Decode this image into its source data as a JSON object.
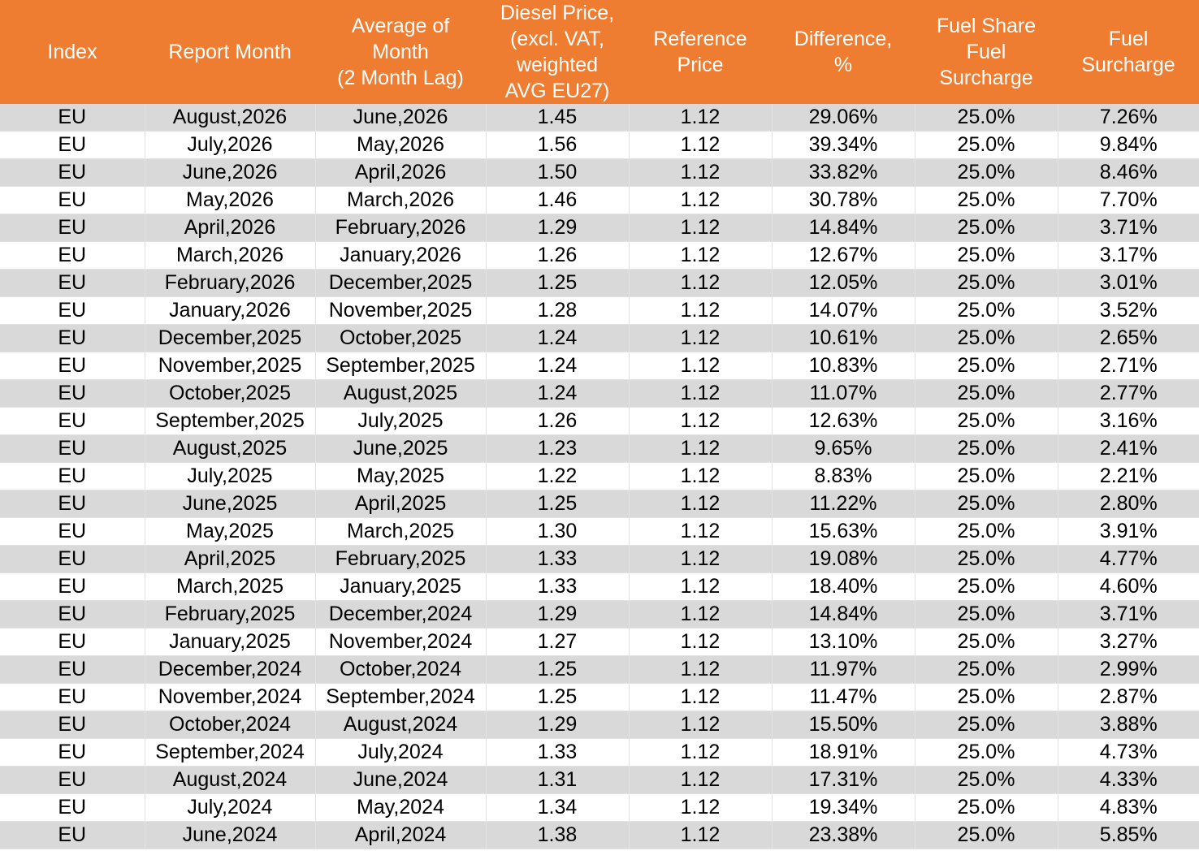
{
  "table": {
    "headers": [
      "Index",
      "Report Month",
      "Average of\nMonth\n(2 Month Lag)",
      "Diesel Price,\n(excl. VAT,\nweighted\nAVG EU27)",
      "Reference\nPrice",
      "Difference,\n%",
      "Fuel Share\nFuel\nSurcharge",
      "Fuel\nSurcharge"
    ],
    "rows": [
      [
        "EU",
        "August,2026",
        "June,2026",
        "1.45",
        "1.12",
        "29.06%",
        "25.0%",
        "7.26%"
      ],
      [
        "EU",
        "July,2026",
        "May,2026",
        "1.56",
        "1.12",
        "39.34%",
        "25.0%",
        "9.84%"
      ],
      [
        "EU",
        "June,2026",
        "April,2026",
        "1.50",
        "1.12",
        "33.82%",
        "25.0%",
        "8.46%"
      ],
      [
        "EU",
        "May,2026",
        "March,2026",
        "1.46",
        "1.12",
        "30.78%",
        "25.0%",
        "7.70%"
      ],
      [
        "EU",
        "April,2026",
        "February,2026",
        "1.29",
        "1.12",
        "14.84%",
        "25.0%",
        "3.71%"
      ],
      [
        "EU",
        "March,2026",
        "January,2026",
        "1.26",
        "1.12",
        "12.67%",
        "25.0%",
        "3.17%"
      ],
      [
        "EU",
        "February,2026",
        "December,2025",
        "1.25",
        "1.12",
        "12.05%",
        "25.0%",
        "3.01%"
      ],
      [
        "EU",
        "January,2026",
        "November,2025",
        "1.28",
        "1.12",
        "14.07%",
        "25.0%",
        "3.52%"
      ],
      [
        "EU",
        "December,2025",
        "October,2025",
        "1.24",
        "1.12",
        "10.61%",
        "25.0%",
        "2.65%"
      ],
      [
        "EU",
        "November,2025",
        "September,2025",
        "1.24",
        "1.12",
        "10.83%",
        "25.0%",
        "2.71%"
      ],
      [
        "EU",
        "October,2025",
        "August,2025",
        "1.24",
        "1.12",
        "11.07%",
        "25.0%",
        "2.77%"
      ],
      [
        "EU",
        "September,2025",
        "July,2025",
        "1.26",
        "1.12",
        "12.63%",
        "25.0%",
        "3.16%"
      ],
      [
        "EU",
        "August,2025",
        "June,2025",
        "1.23",
        "1.12",
        "9.65%",
        "25.0%",
        "2.41%"
      ],
      [
        "EU",
        "July,2025",
        "May,2025",
        "1.22",
        "1.12",
        "8.83%",
        "25.0%",
        "2.21%"
      ],
      [
        "EU",
        "June,2025",
        "April,2025",
        "1.25",
        "1.12",
        "11.22%",
        "25.0%",
        "2.80%"
      ],
      [
        "EU",
        "May,2025",
        "March,2025",
        "1.30",
        "1.12",
        "15.63%",
        "25.0%",
        "3.91%"
      ],
      [
        "EU",
        "April,2025",
        "February,2025",
        "1.33",
        "1.12",
        "19.08%",
        "25.0%",
        "4.77%"
      ],
      [
        "EU",
        "March,2025",
        "January,2025",
        "1.33",
        "1.12",
        "18.40%",
        "25.0%",
        "4.60%"
      ],
      [
        "EU",
        "February,2025",
        "December,2024",
        "1.29",
        "1.12",
        "14.84%",
        "25.0%",
        "3.71%"
      ],
      [
        "EU",
        "January,2025",
        "November,2024",
        "1.27",
        "1.12",
        "13.10%",
        "25.0%",
        "3.27%"
      ],
      [
        "EU",
        "December,2024",
        "October,2024",
        "1.25",
        "1.12",
        "11.97%",
        "25.0%",
        "2.99%"
      ],
      [
        "EU",
        "November,2024",
        "September,2024",
        "1.25",
        "1.12",
        "11.47%",
        "25.0%",
        "2.87%"
      ],
      [
        "EU",
        "October,2024",
        "August,2024",
        "1.29",
        "1.12",
        "15.50%",
        "25.0%",
        "3.88%"
      ],
      [
        "EU",
        "September,2024",
        "July,2024",
        "1.33",
        "1.12",
        "18.91%",
        "25.0%",
        "4.73%"
      ],
      [
        "EU",
        "August,2024",
        "June,2024",
        "1.31",
        "1.12",
        "17.31%",
        "25.0%",
        "4.33%"
      ],
      [
        "EU",
        "July,2024",
        "May,2024",
        "1.34",
        "1.12",
        "19.34%",
        "25.0%",
        "4.83%"
      ],
      [
        "EU",
        "June,2024",
        "April,2024",
        "1.38",
        "1.12",
        "23.38%",
        "25.0%",
        "5.85%"
      ]
    ]
  },
  "colors": {
    "header_bg": "#ee7d31",
    "header_text": "#ffffff",
    "row_band": "#d9d9d9",
    "row_plain": "#ffffff",
    "grid_line": "#e2e2e2"
  }
}
